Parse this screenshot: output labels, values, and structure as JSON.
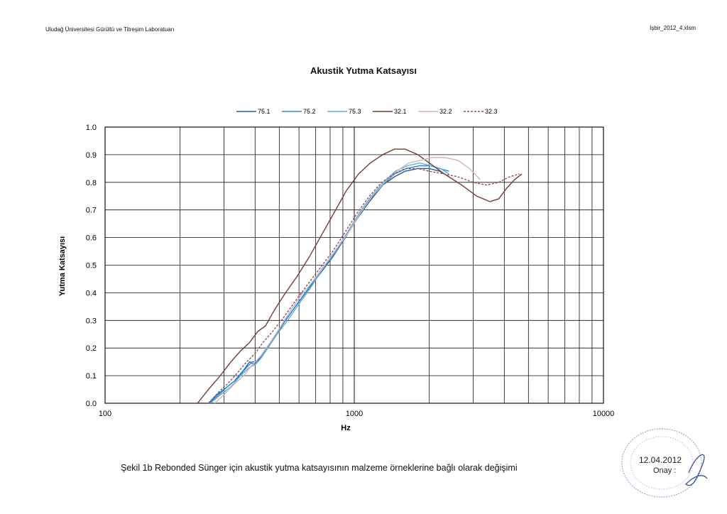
{
  "header": {
    "left_text": "Uludağ Üniversitesi Gürültü ve Titreşim Laboratuarı",
    "right_text": "İşbir_2012_4.xlsm"
  },
  "caption": "Şekil 1b Rebonded Sünger için akustik yutma katsayısının malzeme örneklerine bağlı olarak değişimi",
  "stamp": {
    "date": "12.04.2012",
    "label": "Onay :"
  },
  "chart_data": {
    "type": "line",
    "title": "Akustik Yutma Katsayısı",
    "xlabel": "Hz",
    "ylabel": "Yutma Katsayısı",
    "xscale": "log",
    "xlim": [
      100,
      10000
    ],
    "ylim": [
      0,
      1
    ],
    "x_ticks": [
      "100",
      "1000",
      "10000"
    ],
    "y_ticks": [
      "0.0",
      "0.1",
      "0.2",
      "0.3",
      "0.4",
      "0.5",
      "0.6",
      "0.7",
      "0.8",
      "0.9",
      "1.0"
    ],
    "grid": true,
    "legend_position": "top",
    "series": [
      {
        "name": "75.1",
        "color": "#1f5fa8",
        "dash": "none",
        "x": [
          260,
          280,
          300,
          330,
          360,
          380,
          400,
          430,
          470,
          520,
          580,
          650,
          730,
          820,
          920,
          1030,
          1150,
          1300,
          1450,
          1600,
          1800,
          2000,
          2200,
          2400
        ],
        "y": [
          0.0,
          0.03,
          0.05,
          0.08,
          0.12,
          0.15,
          0.14,
          0.18,
          0.23,
          0.29,
          0.35,
          0.41,
          0.47,
          0.53,
          0.6,
          0.67,
          0.73,
          0.79,
          0.82,
          0.84,
          0.85,
          0.85,
          0.84,
          0.82
        ]
      },
      {
        "name": "75.2",
        "color": "#2e86d6",
        "dash": "none",
        "x": [
          262,
          285,
          310,
          340,
          370,
          390,
          410,
          440,
          480,
          530,
          590,
          660,
          740,
          830,
          930,
          1040,
          1160,
          1300,
          1450,
          1620,
          1820,
          2020,
          2200,
          2400
        ],
        "y": [
          0.0,
          0.03,
          0.06,
          0.09,
          0.13,
          0.15,
          0.15,
          0.19,
          0.24,
          0.3,
          0.36,
          0.42,
          0.48,
          0.54,
          0.61,
          0.68,
          0.74,
          0.79,
          0.83,
          0.85,
          0.86,
          0.86,
          0.85,
          0.84
        ]
      },
      {
        "name": "75.3",
        "color": "#5ab0e6",
        "dash": "none",
        "x": [
          265,
          290,
          320,
          350,
          380,
          400,
          420,
          450,
          490,
          540,
          600,
          670,
          750,
          840,
          940,
          1050,
          1170,
          1310,
          1460,
          1630,
          1830,
          2030,
          2220,
          2400
        ],
        "y": [
          0.0,
          0.03,
          0.06,
          0.1,
          0.13,
          0.14,
          0.16,
          0.2,
          0.25,
          0.3,
          0.36,
          0.42,
          0.49,
          0.55,
          0.62,
          0.69,
          0.75,
          0.8,
          0.84,
          0.86,
          0.87,
          0.86,
          0.85,
          0.83
        ]
      },
      {
        "name": "32.1",
        "color": "#7a3a32",
        "dash": "none",
        "x": [
          235,
          260,
          290,
          320,
          350,
          380,
          410,
          440,
          480,
          530,
          590,
          660,
          740,
          830,
          930,
          1040,
          1160,
          1300,
          1450,
          1600,
          1800,
          2000,
          2300,
          2700,
          3100,
          3500,
          3800,
          4100,
          4400,
          4700
        ],
        "y": [
          0.0,
          0.05,
          0.1,
          0.15,
          0.19,
          0.22,
          0.26,
          0.28,
          0.34,
          0.4,
          0.46,
          0.53,
          0.61,
          0.69,
          0.77,
          0.83,
          0.87,
          0.9,
          0.92,
          0.92,
          0.9,
          0.87,
          0.83,
          0.79,
          0.75,
          0.73,
          0.74,
          0.78,
          0.81,
          0.83
        ]
      },
      {
        "name": "32.2",
        "color": "#d4b4b0",
        "dash": "none",
        "x": [
          275,
          300,
          330,
          360,
          390,
          420,
          460,
          500,
          550,
          610,
          680,
          760,
          850,
          950,
          1060,
          1180,
          1320,
          1480,
          1650,
          1850,
          2050,
          2300,
          2600,
          2900,
          3200
        ],
        "y": [
          0.0,
          0.03,
          0.07,
          0.1,
          0.14,
          0.17,
          0.22,
          0.27,
          0.33,
          0.39,
          0.44,
          0.5,
          0.56,
          0.62,
          0.69,
          0.75,
          0.8,
          0.84,
          0.87,
          0.88,
          0.89,
          0.89,
          0.88,
          0.85,
          0.81
        ]
      },
      {
        "name": "32.3",
        "color": "#9c4a52",
        "dash": "3,2",
        "x": [
          260,
          285,
          310,
          340,
          370,
          400,
          430,
          470,
          520,
          580,
          650,
          730,
          820,
          920,
          1030,
          1150,
          1290,
          1440,
          1600,
          1800,
          2000,
          2300,
          2600,
          3000,
          3400,
          3800,
          4200,
          4600
        ],
        "y": [
          0.0,
          0.04,
          0.07,
          0.11,
          0.15,
          0.18,
          0.22,
          0.26,
          0.31,
          0.37,
          0.43,
          0.49,
          0.55,
          0.62,
          0.69,
          0.75,
          0.8,
          0.83,
          0.85,
          0.85,
          0.84,
          0.83,
          0.82,
          0.8,
          0.79,
          0.8,
          0.82,
          0.83
        ]
      }
    ]
  }
}
